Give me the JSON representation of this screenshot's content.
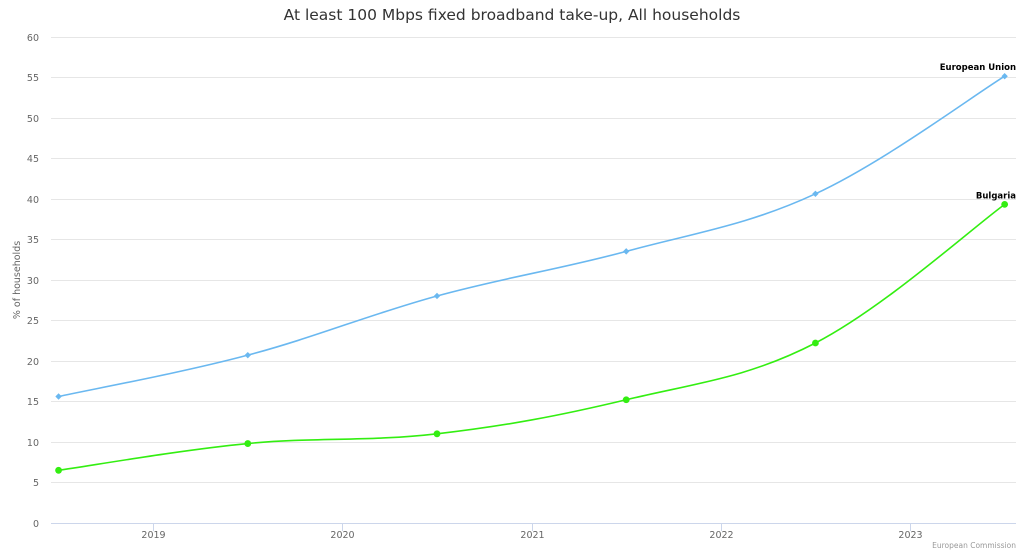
{
  "chart_data": {
    "type": "line",
    "title": "At least 100 Mbps fixed broadband take-up, All households",
    "xlabel": "",
    "ylabel": "% of households",
    "xlim": [
      2018.46,
      2023.56
    ],
    "ylim": [
      0,
      60
    ],
    "y_ticks": [
      0,
      5,
      10,
      15,
      20,
      25,
      30,
      35,
      40,
      45,
      50,
      55,
      60
    ],
    "x_ticks": [
      2019,
      2020,
      2021,
      2022,
      2023
    ],
    "x_tick_labels": [
      "2019",
      "2020",
      "2021",
      "2022",
      "2023"
    ],
    "grid": true,
    "x": [
      2018.5,
      2019.5,
      2020.5,
      2021.5,
      2022.5,
      2023.5
    ],
    "series": [
      {
        "name": "European Union",
        "color": "#6ab8f0",
        "marker": "diamond",
        "values": [
          15.6,
          20.7,
          28.0,
          33.5,
          40.6,
          55.1
        ],
        "end_label": "European Union"
      },
      {
        "name": "Bulgaria",
        "color": "#33ee11",
        "marker": "circle",
        "values": [
          6.5,
          9.8,
          11.0,
          15.2,
          22.2,
          39.3
        ],
        "end_label": "Bulgaria"
      }
    ],
    "legend": "none (series labelled at line ends)",
    "credit": "European Commission"
  }
}
